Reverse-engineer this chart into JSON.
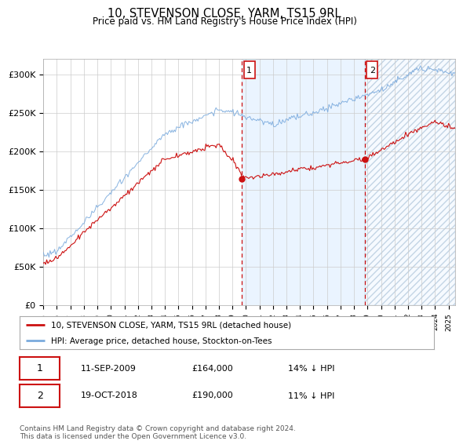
{
  "title": "10, STEVENSON CLOSE, YARM, TS15 9RL",
  "subtitle": "Price paid vs. HM Land Registry's House Price Index (HPI)",
  "ylim": [
    0,
    320000
  ],
  "yticks": [
    0,
    50000,
    100000,
    150000,
    200000,
    250000,
    300000
  ],
  "ytick_labels": [
    "£0",
    "£50K",
    "£100K",
    "£150K",
    "£200K",
    "£250K",
    "£300K"
  ],
  "legend_line1": "10, STEVENSON CLOSE, YARM, TS15 9RL (detached house)",
  "legend_line2": "HPI: Average price, detached house, Stockton-on-Tees",
  "transaction1_date": "11-SEP-2009",
  "transaction1_price": 164000,
  "transaction1_pct": "14% ↓ HPI",
  "transaction1_year": 2009.7,
  "transaction2_date": "19-OCT-2018",
  "transaction2_price": 190000,
  "transaction2_pct": "11% ↓ HPI",
  "transaction2_year": 2018.8,
  "hpi_color": "#7aaadd",
  "price_color": "#cc1111",
  "vline_color": "#cc1111",
  "shade_color": "#ddeeff",
  "footer_text": "Contains HM Land Registry data © Crown copyright and database right 2024.\nThis data is licensed under the Open Government Licence v3.0.",
  "background_color": "#ffffff",
  "grid_color": "#cccccc"
}
